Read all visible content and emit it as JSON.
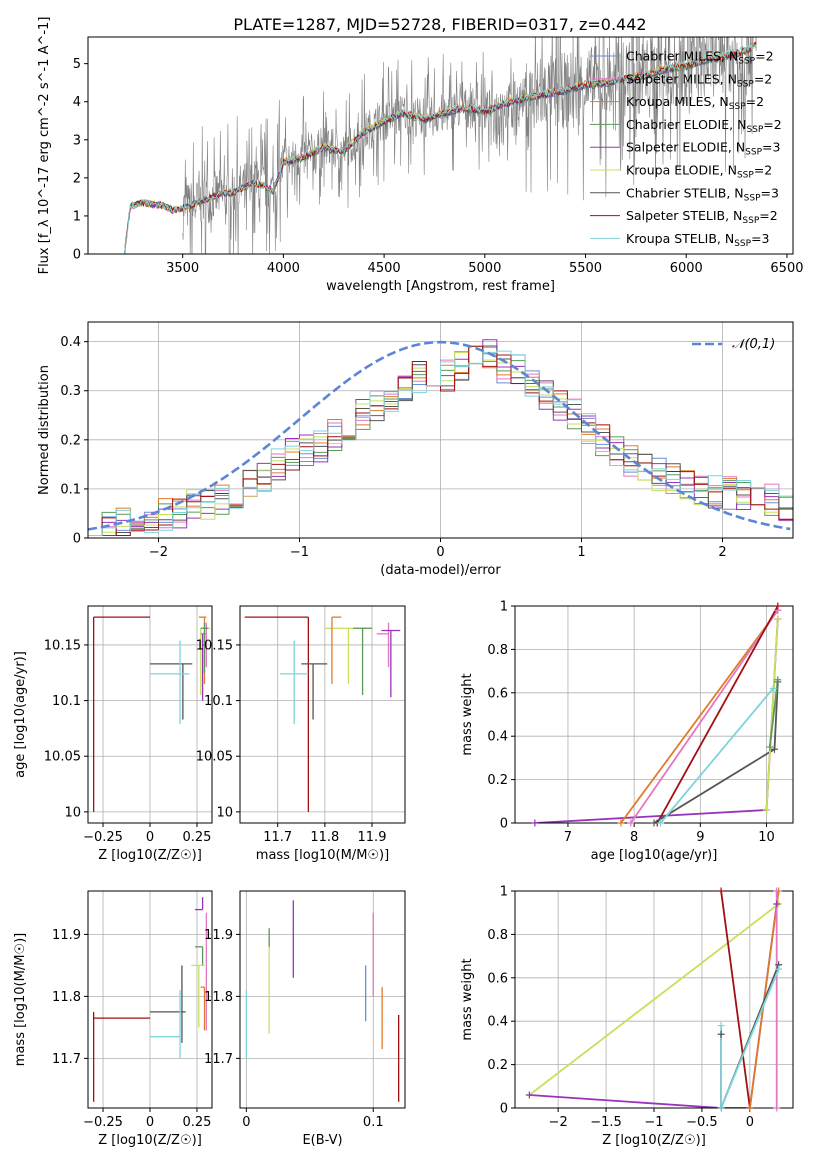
{
  "title": "PLATE=1287, MJD=52728, FIBERID=0317, z=0.442",
  "colors": {
    "Chabrier MILES": "#6a8fd6",
    "Salpeter MILES": "#e377c2",
    "Kroupa MILES": "#e07b2a",
    "Chabrier ELODIE": "#5a9a5a",
    "Salpeter ELODIE": "#9933bb",
    "Kroupa ELODIE": "#c8e05a",
    "Chabrier STELIB": "#555555",
    "Salpeter STELIB": "#a01010",
    "Kroupa STELIB": "#7fd3dc"
  },
  "chart_data": [
    {
      "type": "line",
      "panel": "spectrum",
      "xlabel": "wavelength [Angstrom, rest frame]",
      "ylabel": "Flux [f_λ 10^-17 erg cm^-2 s^-1 A^-1]",
      "xlim": [
        3030,
        6530
      ],
      "ylim": [
        0,
        5.7
      ],
      "xticks": [
        3500,
        4000,
        4500,
        5000,
        5500,
        6000,
        6500
      ],
      "yticks": [
        0,
        1,
        2,
        3,
        4,
        5
      ],
      "grid": false,
      "legend_position": "top-right",
      "legend": [
        "Chabrier MILES, N_SSP=2",
        "Salpeter MILES, N_SSP=2",
        "Kroupa MILES, N_SSP=2",
        "Chabrier ELODIE, N_SSP=2",
        "Salpeter ELODIE, N_SSP=3",
        "Kroupa ELODIE, N_SSP=2",
        "Chabrier STELIB, N_SSP=3",
        "Salpeter STELIB, N_SSP=2",
        "Kroupa STELIB, N_SSP=3"
      ],
      "model_continuum": {
        "x": [
          3210,
          3240,
          3300,
          3350,
          3400,
          3450,
          3500,
          3550,
          3600,
          3650,
          3700,
          3750,
          3800,
          3850,
          3900,
          3950,
          4000,
          4100,
          4200,
          4300,
          4400,
          4500,
          4600,
          4700,
          4800,
          4900,
          5000,
          5100,
          5200,
          5300,
          5400,
          5500,
          5600,
          5700,
          5800,
          5900,
          6000,
          6100,
          6200,
          6300,
          6350
        ],
        "y": [
          0,
          1.25,
          1.35,
          1.3,
          1.28,
          1.15,
          1.2,
          1.3,
          1.4,
          1.5,
          1.6,
          1.6,
          1.75,
          1.85,
          1.8,
          1.65,
          2.4,
          2.55,
          2.8,
          2.7,
          3.2,
          3.5,
          3.7,
          3.55,
          3.7,
          3.85,
          3.75,
          3.95,
          4.1,
          4.2,
          4.3,
          4.45,
          4.5,
          4.6,
          4.7,
          4.85,
          4.95,
          5.1,
          5.2,
          5.35,
          5.5
        ]
      },
      "data_extent": [
        3500,
        6350
      ]
    },
    {
      "type": "step",
      "panel": "residuals",
      "xlabel": "(data-model)/error",
      "ylabel": "Normed distribution",
      "xlim": [
        -2.5,
        2.5
      ],
      "ylim": [
        0,
        0.44
      ],
      "xticks": [
        -2,
        -1,
        0,
        1,
        2
      ],
      "yticks": [
        0.0,
        0.1,
        0.2,
        0.3,
        0.4
      ],
      "grid": true,
      "legend_position": "top-right",
      "legend": [
        "𝒩(0,1)"
      ],
      "normal_curve": {
        "mean": 0,
        "sigma": 1
      },
      "bins": [
        -2.5,
        2.5,
        50
      ],
      "envelope": [
        0.02,
        0.025,
        0.03,
        0.035,
        0.04,
        0.05,
        0.055,
        0.065,
        0.07,
        0.075,
        0.09,
        0.11,
        0.13,
        0.15,
        0.17,
        0.18,
        0.19,
        0.21,
        0.23,
        0.25,
        0.27,
        0.29,
        0.31,
        0.33,
        0.34,
        0.33,
        0.35,
        0.36,
        0.37,
        0.35,
        0.34,
        0.31,
        0.29,
        0.27,
        0.25,
        0.22,
        0.2,
        0.18,
        0.16,
        0.14,
        0.13,
        0.12,
        0.11,
        0.1,
        0.095,
        0.09,
        0.085,
        0.08,
        0.075,
        0.07
      ]
    },
    {
      "type": "errorbar",
      "panel": "age_vs_Z",
      "xlabel": "Z [log10(Z/Z☉)]",
      "ylabel": "age  [log10(age/yr)]",
      "xlim": [
        -0.33,
        0.33
      ],
      "ylim": [
        9.99,
        10.185
      ],
      "xticks": [
        -0.25,
        0.0,
        0.25
      ],
      "yticks": [
        10.0,
        10.05,
        10.1,
        10.15
      ],
      "grid": true,
      "points": [
        {
          "model": "Salpeter STELIB",
          "x": -0.3,
          "xerr": [
            0.0,
            0.3
          ],
          "y": 10.175,
          "yerr": [
            0.175,
            0.0
          ]
        },
        {
          "model": "Chabrier STELIB",
          "x": 0.175,
          "xerr": [
            0.175,
            0.05
          ],
          "y": 10.133,
          "yerr": [
            0.05,
            0.0
          ]
        },
        {
          "model": "Kroupa STELIB",
          "x": 0.16,
          "xerr": [
            0.16,
            0.05
          ],
          "y": 10.124,
          "yerr": [
            0.045,
            0.03
          ]
        },
        {
          "model": "Kroupa ELODIE",
          "x": 0.27,
          "xerr": [
            0.0,
            0.05
          ],
          "y": 10.165,
          "yerr": [
            0.06,
            0.0
          ]
        },
        {
          "model": "Salpeter MILES",
          "x": 0.3,
          "xerr": [
            0.03,
            0.0
          ],
          "y": 10.16,
          "yerr": [
            0.03,
            0.01
          ]
        },
        {
          "model": "Kroupa MILES",
          "x": 0.29,
          "xerr": [
            0.03,
            0.01
          ],
          "y": 10.175,
          "yerr": [
            0.06,
            0.0
          ]
        },
        {
          "model": "Salpeter ELODIE",
          "x": 0.28,
          "xerr": [
            0.0,
            0.02
          ],
          "y": 10.15,
          "yerr": [
            0.05,
            0.01
          ]
        },
        {
          "model": "Chabrier ELODIE",
          "x": 0.29,
          "xerr": [
            0.02,
            0.02
          ],
          "y": 10.165,
          "yerr": [
            0.04,
            0.005
          ]
        }
      ]
    },
    {
      "type": "errorbar",
      "panel": "age_vs_mass",
      "xlabel": "mass [log10(M/M☉)]",
      "ylabel": "",
      "xlim": [
        11.62,
        11.97
      ],
      "ylim": [
        9.99,
        10.185
      ],
      "xticks": [
        11.7,
        11.8,
        11.9
      ],
      "yticks": [
        10.0,
        10.05,
        10.1,
        10.15
      ],
      "grid": true,
      "points": [
        {
          "model": "Salpeter STELIB",
          "x": 11.765,
          "xerr": [
            0.135,
            0.0
          ],
          "y": 10.175,
          "yerr": [
            0.175,
            0.0
          ]
        },
        {
          "model": "Chabrier STELIB",
          "x": 11.775,
          "xerr": [
            0.025,
            0.03
          ],
          "y": 10.133,
          "yerr": [
            0.05,
            0.0
          ]
        },
        {
          "model": "Kroupa STELIB",
          "x": 11.735,
          "xerr": [
            0.03,
            0.03
          ],
          "y": 10.124,
          "yerr": [
            0.045,
            0.03
          ]
        },
        {
          "model": "Kroupa ELODIE",
          "x": 11.85,
          "xerr": [
            0.05,
            0.05
          ],
          "y": 10.165,
          "yerr": [
            0.05,
            0.0
          ]
        },
        {
          "model": "Salpeter MILES",
          "x": 11.935,
          "xerr": [
            0.025,
            0.0
          ],
          "y": 10.16,
          "yerr": [
            0.03,
            0.01
          ]
        },
        {
          "model": "Kroupa MILES",
          "x": 11.815,
          "xerr": [
            0.0,
            0.02
          ],
          "y": 10.175,
          "yerr": [
            0.06,
            0.0
          ]
        },
        {
          "model": "Salpeter ELODIE",
          "x": 11.94,
          "xerr": [
            0.02,
            0.02
          ],
          "y": 10.163,
          "yerr": [
            0.06,
            0.0
          ]
        },
        {
          "model": "Chabrier ELODIE",
          "x": 11.88,
          "xerr": [
            0.02,
            0.02
          ],
          "y": 10.165,
          "yerr": [
            0.06,
            0.0
          ]
        }
      ]
    },
    {
      "type": "line",
      "panel": "mass_weight_vs_age",
      "xlabel": "age  [log10(age/yr)]",
      "ylabel": "mass weight",
      "xlim": [
        6.2,
        10.4
      ],
      "ylim": [
        0,
        1
      ],
      "xticks": [
        7,
        8,
        9,
        10
      ],
      "yticks": [
        0.0,
        0.2,
        0.4,
        0.6,
        0.8,
        1.0
      ],
      "grid": true,
      "lines": [
        {
          "model": "Salpeter ELODIE",
          "x": [
            6.5,
            10.0,
            10.17
          ],
          "y": [
            0.0,
            0.06,
            0.94
          ]
        },
        {
          "model": "Kroupa MILES",
          "x": [
            7.8,
            10.17
          ],
          "y": [
            0.0,
            0.98
          ]
        },
        {
          "model": "Salpeter MILES",
          "x": [
            7.95,
            10.17
          ],
          "y": [
            0.0,
            0.98
          ]
        },
        {
          "model": "Salpeter STELIB",
          "x": [
            8.35,
            10.17
          ],
          "y": [
            0.0,
            1.0
          ]
        },
        {
          "model": "Chabrier STELIB",
          "x": [
            8.3,
            10.12,
            10.17
          ],
          "y": [
            0.0,
            0.34,
            0.65
          ]
        },
        {
          "model": "Kroupa STELIB",
          "x": [
            8.4,
            10.1
          ],
          "y": [
            0.0,
            0.62
          ]
        },
        {
          "model": "Kroupa ELODIE",
          "x": [
            10.0,
            10.17
          ],
          "y": [
            0.06,
            0.94
          ]
        },
        {
          "model": "Chabrier ELODIE",
          "x": [
            10.05,
            10.17
          ],
          "y": [
            0.35,
            0.66
          ]
        }
      ]
    },
    {
      "type": "errorbar",
      "panel": "mass_vs_Z",
      "xlabel": "Z [log10(Z/Z☉)]",
      "ylabel": "mass [log10(M/M☉)]",
      "xlim": [
        -0.33,
        0.33
      ],
      "ylim": [
        11.62,
        11.97
      ],
      "xticks": [
        -0.25,
        0.0,
        0.25
      ],
      "yticks": [
        11.7,
        11.8,
        11.9
      ],
      "grid": true,
      "points": [
        {
          "model": "Salpeter STELIB",
          "x": -0.3,
          "xerr": [
            0.0,
            0.3
          ],
          "y": 11.765,
          "yerr": [
            0.135,
            0.01
          ]
        },
        {
          "model": "Chabrier STELIB",
          "x": 0.0,
          "xerr": [
            0.0,
            0.19
          ],
          "y": 11.775,
          "yerr": [
            0.0,
            0.0
          ]
        },
        {
          "model": "Chabrier STELIB",
          "x": 0.17,
          "xerr": [
            0.0,
            0.0
          ],
          "y": 11.775,
          "yerr": [
            0.05,
            0.075
          ]
        },
        {
          "model": "Kroupa STELIB",
          "x": 0.0,
          "xerr": [
            0.0,
            0.16
          ],
          "y": 11.735,
          "yerr": [
            0.0,
            0.0
          ]
        },
        {
          "model": "Kroupa STELIB",
          "x": 0.16,
          "xerr": [
            0.0,
            0.0
          ],
          "y": 11.735,
          "yerr": [
            0.035,
            0.075
          ]
        },
        {
          "model": "Salpeter ELODIE",
          "x": 0.28,
          "xerr": [
            0.04,
            0.0
          ],
          "y": 11.94,
          "yerr": [
            0.0,
            0.02
          ]
        },
        {
          "model": "Chabrier ELODIE",
          "x": 0.28,
          "xerr": [
            0.04,
            0.0
          ],
          "y": 11.88,
          "yerr": [
            0.03,
            0.0
          ]
        },
        {
          "model": "Kroupa ELODIE",
          "x": 0.26,
          "xerr": [
            0.04,
            0.03
          ],
          "y": 11.85,
          "yerr": [
            0.1,
            0.0
          ]
        },
        {
          "model": "Kroupa MILES",
          "x": 0.29,
          "xerr": [
            0.02,
            0.0
          ],
          "y": 11.815,
          "yerr": [
            0.07,
            0.0
          ]
        },
        {
          "model": "Salpeter MILES",
          "x": 0.3,
          "xerr": [
            0.0,
            0.0
          ],
          "y": 11.935,
          "yerr": [
            0.19,
            0.0
          ]
        }
      ]
    },
    {
      "type": "errorbar",
      "panel": "mass_vs_EBV",
      "xlabel": "E(B-V)",
      "ylabel": "",
      "xlim": [
        -0.005,
        0.125
      ],
      "ylim": [
        11.62,
        11.97
      ],
      "xticks": [
        0.0,
        0.1
      ],
      "yticks": [
        11.7,
        11.8,
        11.9
      ],
      "grid": true,
      "points": [
        {
          "model": "Kroupa STELIB",
          "x": 0.0,
          "y": 11.77,
          "yerr": [
            0.07,
            0.04
          ]
        },
        {
          "model": "Kroupa ELODIE",
          "x": 0.018,
          "y": 11.82,
          "yerr": [
            0.08,
            0.07
          ]
        },
        {
          "model": "Chabrier ELODIE",
          "x": 0.018,
          "y": 11.88,
          "yerr": [
            0.0,
            0.03
          ]
        },
        {
          "model": "Salpeter ELODIE",
          "x": 0.037,
          "y": 11.89,
          "yerr": [
            0.06,
            0.065
          ]
        },
        {
          "model": "Chabrier MILES",
          "x": 0.094,
          "y": 11.81,
          "yerr": [
            0.05,
            0.04
          ]
        },
        {
          "model": "Salpeter MILES",
          "x": 0.1,
          "y": 11.86,
          "yerr": [
            0.06,
            0.075
          ]
        },
        {
          "model": "Kroupa MILES",
          "x": 0.107,
          "y": 11.765,
          "yerr": [
            0.05,
            0.05
          ]
        },
        {
          "model": "Salpeter STELIB",
          "x": 0.12,
          "y": 11.7,
          "yerr": [
            0.07,
            0.07
          ]
        }
      ]
    },
    {
      "type": "line",
      "panel": "mass_weight_vs_Z",
      "xlabel": "Z [log10(Z/Z☉)]",
      "ylabel": "mass weight",
      "xlim": [
        -2.45,
        0.45
      ],
      "ylim": [
        0,
        1
      ],
      "xticks": [
        -2.0,
        -1.5,
        -1.0,
        -0.5,
        0.0
      ],
      "yticks": [
        0.0,
        0.2,
        0.4,
        0.6,
        0.8,
        1.0
      ],
      "grid": true,
      "lines": [
        {
          "model": "Kroupa ELODIE",
          "x": [
            -2.3,
            0.3
          ],
          "y": [
            0.06,
            0.94
          ]
        },
        {
          "model": "Salpeter ELODIE",
          "x": [
            -2.3,
            -0.3,
            0.0,
            0.28
          ],
          "y": [
            0.06,
            0.0,
            0.0,
            0.94
          ]
        },
        {
          "model": "Salpeter STELIB",
          "x": [
            -0.3,
            0.0
          ],
          "y": [
            1.0,
            0.0
          ]
        },
        {
          "model": "Kroupa MILES",
          "x": [
            0.0,
            0.3
          ],
          "y": [
            0.0,
            1.0
          ]
        },
        {
          "model": "Salpeter MILES",
          "x": [
            0.28,
            0.28
          ],
          "y": [
            0.0,
            1.0
          ]
        },
        {
          "model": "Chabrier STELIB",
          "x": [
            -0.3,
            0.3
          ],
          "y": [
            0.0,
            0.66
          ]
        },
        {
          "model": "Kroupa STELIB",
          "x": [
            -0.3,
            0.3
          ],
          "y": [
            0.0,
            0.64
          ]
        },
        {
          "model": "Chabrier STELIB",
          "x": [
            -0.3,
            -0.3
          ],
          "y": [
            0.0,
            0.34
          ]
        },
        {
          "model": "Kroupa STELIB",
          "x": [
            -0.3,
            -0.3
          ],
          "y": [
            0.0,
            0.38
          ]
        }
      ]
    }
  ]
}
